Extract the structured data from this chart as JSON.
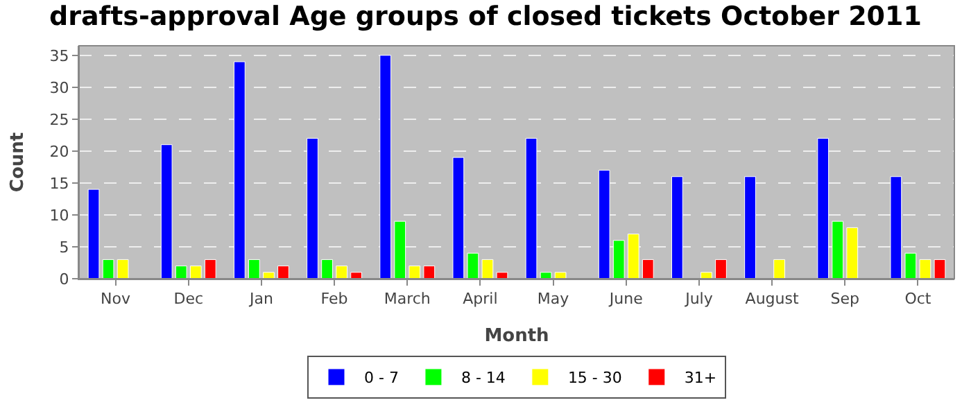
{
  "chart_data": {
    "type": "bar",
    "title": "drafts-approval Age groups of closed tickets October 2011",
    "xlabel": "Month",
    "ylabel": "Count",
    "categories": [
      "Nov",
      "Dec",
      "Jan",
      "Feb",
      "March",
      "April",
      "May",
      "June",
      "July",
      "August",
      "Sep",
      "Oct"
    ],
    "series": [
      {
        "name": "0 - 7",
        "color": "#0000ff",
        "values": [
          14,
          21,
          34,
          22,
          35,
          19,
          22,
          17,
          16,
          16,
          22,
          16
        ]
      },
      {
        "name": "8 - 14",
        "color": "#00ff00",
        "values": [
          3,
          2,
          3,
          3,
          9,
          4,
          1,
          6,
          null,
          null,
          9,
          4
        ]
      },
      {
        "name": "15 - 30",
        "color": "#ffff00",
        "values": [
          3,
          2,
          1,
          2,
          2,
          3,
          1,
          7,
          1,
          3,
          8,
          3
        ]
      },
      {
        "name": "31+",
        "color": "#ff0000",
        "values": [
          null,
          3,
          2,
          1,
          2,
          1,
          null,
          3,
          3,
          null,
          null,
          3
        ]
      }
    ],
    "ylim": [
      0,
      36.5
    ],
    "yticks": [
      0,
      5,
      10,
      15,
      20,
      25,
      30,
      35
    ],
    "grid": "y",
    "legend": "bottom"
  }
}
